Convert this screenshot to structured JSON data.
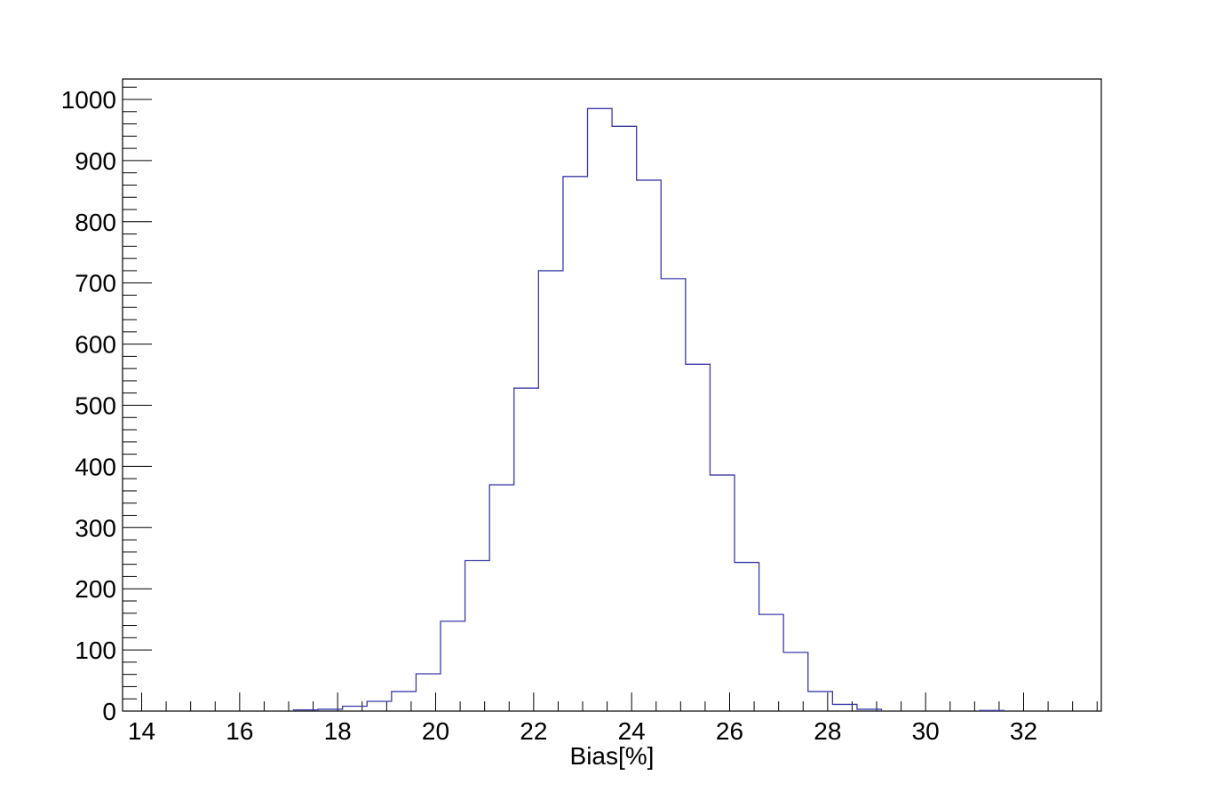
{
  "chart_data": {
    "type": "histogram",
    "title": "",
    "xlabel": "Bias[%]",
    "ylabel": "",
    "xlim": [
      13.6,
      33.6
    ],
    "ylim": [
      0,
      1000
    ],
    "grid": false,
    "line_color": "#3a3aa8",
    "x_ticks": [
      14,
      16,
      18,
      20,
      22,
      24,
      26,
      28,
      30,
      32
    ],
    "x_tick_labels": [
      "14",
      "16",
      "18",
      "20",
      "22",
      "24",
      "26",
      "28",
      "30",
      "32"
    ],
    "y_ticks": [
      0,
      100,
      200,
      300,
      400,
      500,
      600,
      700,
      800,
      900,
      1000
    ],
    "y_tick_labels": [
      "0",
      "100",
      "200",
      "300",
      "400",
      "500",
      "600",
      "700",
      "800",
      "900",
      "1000"
    ],
    "bin_edges": [
      17.1,
      17.6,
      18.1,
      18.6,
      19.1,
      19.6,
      20.1,
      20.6,
      21.1,
      21.6,
      22.1,
      22.6,
      23.1,
      23.6,
      24.1,
      24.6,
      25.1,
      25.6,
      26.1,
      26.6,
      27.1,
      27.6,
      28.1,
      28.6,
      29.1
    ],
    "counts": [
      2,
      3,
      8,
      16,
      32,
      61,
      147,
      246,
      370,
      528,
      720,
      874,
      985,
      956,
      868,
      707,
      567,
      386,
      243,
      158,
      96,
      32,
      11,
      3
    ],
    "extra_bins": [
      {
        "x0": 31.1,
        "x1": 31.6,
        "count": 1
      }
    ]
  }
}
